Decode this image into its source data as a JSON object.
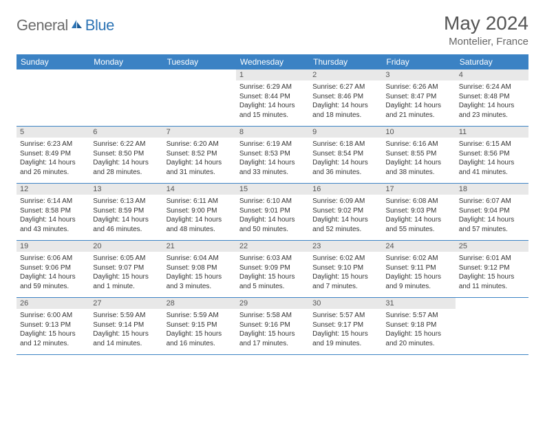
{
  "logo": {
    "text1": "General",
    "text2": "Blue",
    "text_color": "#6b6b6b",
    "accent_color": "#2d74b5"
  },
  "title": "May 2024",
  "location": "Montelier, France",
  "header_bg": "#3b82c4",
  "row_border": "#3b82c4",
  "day_header_bg": "#e8e8e8",
  "weekdays": [
    "Sunday",
    "Monday",
    "Tuesday",
    "Wednesday",
    "Thursday",
    "Friday",
    "Saturday"
  ],
  "weeks": [
    [
      null,
      null,
      null,
      {
        "n": "1",
        "sunrise": "Sunrise: 6:29 AM",
        "sunset": "Sunset: 8:44 PM",
        "daylight": "Daylight: 14 hours and 15 minutes."
      },
      {
        "n": "2",
        "sunrise": "Sunrise: 6:27 AM",
        "sunset": "Sunset: 8:46 PM",
        "daylight": "Daylight: 14 hours and 18 minutes."
      },
      {
        "n": "3",
        "sunrise": "Sunrise: 6:26 AM",
        "sunset": "Sunset: 8:47 PM",
        "daylight": "Daylight: 14 hours and 21 minutes."
      },
      {
        "n": "4",
        "sunrise": "Sunrise: 6:24 AM",
        "sunset": "Sunset: 8:48 PM",
        "daylight": "Daylight: 14 hours and 23 minutes."
      }
    ],
    [
      {
        "n": "5",
        "sunrise": "Sunrise: 6:23 AM",
        "sunset": "Sunset: 8:49 PM",
        "daylight": "Daylight: 14 hours and 26 minutes."
      },
      {
        "n": "6",
        "sunrise": "Sunrise: 6:22 AM",
        "sunset": "Sunset: 8:50 PM",
        "daylight": "Daylight: 14 hours and 28 minutes."
      },
      {
        "n": "7",
        "sunrise": "Sunrise: 6:20 AM",
        "sunset": "Sunset: 8:52 PM",
        "daylight": "Daylight: 14 hours and 31 minutes."
      },
      {
        "n": "8",
        "sunrise": "Sunrise: 6:19 AM",
        "sunset": "Sunset: 8:53 PM",
        "daylight": "Daylight: 14 hours and 33 minutes."
      },
      {
        "n": "9",
        "sunrise": "Sunrise: 6:18 AM",
        "sunset": "Sunset: 8:54 PM",
        "daylight": "Daylight: 14 hours and 36 minutes."
      },
      {
        "n": "10",
        "sunrise": "Sunrise: 6:16 AM",
        "sunset": "Sunset: 8:55 PM",
        "daylight": "Daylight: 14 hours and 38 minutes."
      },
      {
        "n": "11",
        "sunrise": "Sunrise: 6:15 AM",
        "sunset": "Sunset: 8:56 PM",
        "daylight": "Daylight: 14 hours and 41 minutes."
      }
    ],
    [
      {
        "n": "12",
        "sunrise": "Sunrise: 6:14 AM",
        "sunset": "Sunset: 8:58 PM",
        "daylight": "Daylight: 14 hours and 43 minutes."
      },
      {
        "n": "13",
        "sunrise": "Sunrise: 6:13 AM",
        "sunset": "Sunset: 8:59 PM",
        "daylight": "Daylight: 14 hours and 46 minutes."
      },
      {
        "n": "14",
        "sunrise": "Sunrise: 6:11 AM",
        "sunset": "Sunset: 9:00 PM",
        "daylight": "Daylight: 14 hours and 48 minutes."
      },
      {
        "n": "15",
        "sunrise": "Sunrise: 6:10 AM",
        "sunset": "Sunset: 9:01 PM",
        "daylight": "Daylight: 14 hours and 50 minutes."
      },
      {
        "n": "16",
        "sunrise": "Sunrise: 6:09 AM",
        "sunset": "Sunset: 9:02 PM",
        "daylight": "Daylight: 14 hours and 52 minutes."
      },
      {
        "n": "17",
        "sunrise": "Sunrise: 6:08 AM",
        "sunset": "Sunset: 9:03 PM",
        "daylight": "Daylight: 14 hours and 55 minutes."
      },
      {
        "n": "18",
        "sunrise": "Sunrise: 6:07 AM",
        "sunset": "Sunset: 9:04 PM",
        "daylight": "Daylight: 14 hours and 57 minutes."
      }
    ],
    [
      {
        "n": "19",
        "sunrise": "Sunrise: 6:06 AM",
        "sunset": "Sunset: 9:06 PM",
        "daylight": "Daylight: 14 hours and 59 minutes."
      },
      {
        "n": "20",
        "sunrise": "Sunrise: 6:05 AM",
        "sunset": "Sunset: 9:07 PM",
        "daylight": "Daylight: 15 hours and 1 minute."
      },
      {
        "n": "21",
        "sunrise": "Sunrise: 6:04 AM",
        "sunset": "Sunset: 9:08 PM",
        "daylight": "Daylight: 15 hours and 3 minutes."
      },
      {
        "n": "22",
        "sunrise": "Sunrise: 6:03 AM",
        "sunset": "Sunset: 9:09 PM",
        "daylight": "Daylight: 15 hours and 5 minutes."
      },
      {
        "n": "23",
        "sunrise": "Sunrise: 6:02 AM",
        "sunset": "Sunset: 9:10 PM",
        "daylight": "Daylight: 15 hours and 7 minutes."
      },
      {
        "n": "24",
        "sunrise": "Sunrise: 6:02 AM",
        "sunset": "Sunset: 9:11 PM",
        "daylight": "Daylight: 15 hours and 9 minutes."
      },
      {
        "n": "25",
        "sunrise": "Sunrise: 6:01 AM",
        "sunset": "Sunset: 9:12 PM",
        "daylight": "Daylight: 15 hours and 11 minutes."
      }
    ],
    [
      {
        "n": "26",
        "sunrise": "Sunrise: 6:00 AM",
        "sunset": "Sunset: 9:13 PM",
        "daylight": "Daylight: 15 hours and 12 minutes."
      },
      {
        "n": "27",
        "sunrise": "Sunrise: 5:59 AM",
        "sunset": "Sunset: 9:14 PM",
        "daylight": "Daylight: 15 hours and 14 minutes."
      },
      {
        "n": "28",
        "sunrise": "Sunrise: 5:59 AM",
        "sunset": "Sunset: 9:15 PM",
        "daylight": "Daylight: 15 hours and 16 minutes."
      },
      {
        "n": "29",
        "sunrise": "Sunrise: 5:58 AM",
        "sunset": "Sunset: 9:16 PM",
        "daylight": "Daylight: 15 hours and 17 minutes."
      },
      {
        "n": "30",
        "sunrise": "Sunrise: 5:57 AM",
        "sunset": "Sunset: 9:17 PM",
        "daylight": "Daylight: 15 hours and 19 minutes."
      },
      {
        "n": "31",
        "sunrise": "Sunrise: 5:57 AM",
        "sunset": "Sunset: 9:18 PM",
        "daylight": "Daylight: 15 hours and 20 minutes."
      },
      null
    ]
  ]
}
